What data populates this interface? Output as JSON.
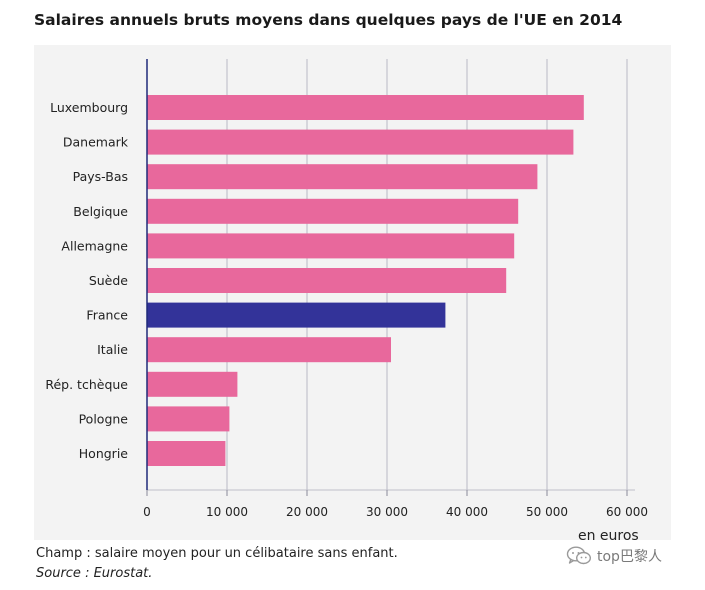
{
  "chart_data": {
    "type": "bar",
    "orientation": "horizontal",
    "title": "Salaires annuels bruts moyens dans quelques pays de l'UE en 2014",
    "unit_label": "en euros",
    "categories": [
      "Luxembourg",
      "Danemark",
      "Pays-Bas",
      "Belgique",
      "Allemagne",
      "Suède",
      "France",
      "Italie",
      "Rép. tchèque",
      "Pologne",
      "Hongrie"
    ],
    "values": [
      54600,
      53300,
      48800,
      46400,
      45900,
      44900,
      37300,
      30500,
      11300,
      10300,
      9800
    ],
    "highlight_category": "France",
    "colors": {
      "default": "#e8689c",
      "highlight": "#333399",
      "axis": "#1f2a7a",
      "grid": "#b8b8c4",
      "background": "#f3f3f3"
    },
    "xlim": [
      0,
      60000
    ],
    "xticks": [
      0,
      10000,
      20000,
      30000,
      40000,
      50000,
      60000
    ],
    "xtick_labels": [
      "0",
      "10 000",
      "20 000",
      "30 000",
      "40 000",
      "50 000",
      "60 000"
    ],
    "grid": true
  },
  "footer": {
    "note": "Champ : salaire moyen pour un célibataire sans enfant.",
    "source": "Source : Eurostat."
  },
  "watermark": {
    "text": "top巴黎人",
    "icon": "wechat-icon"
  }
}
